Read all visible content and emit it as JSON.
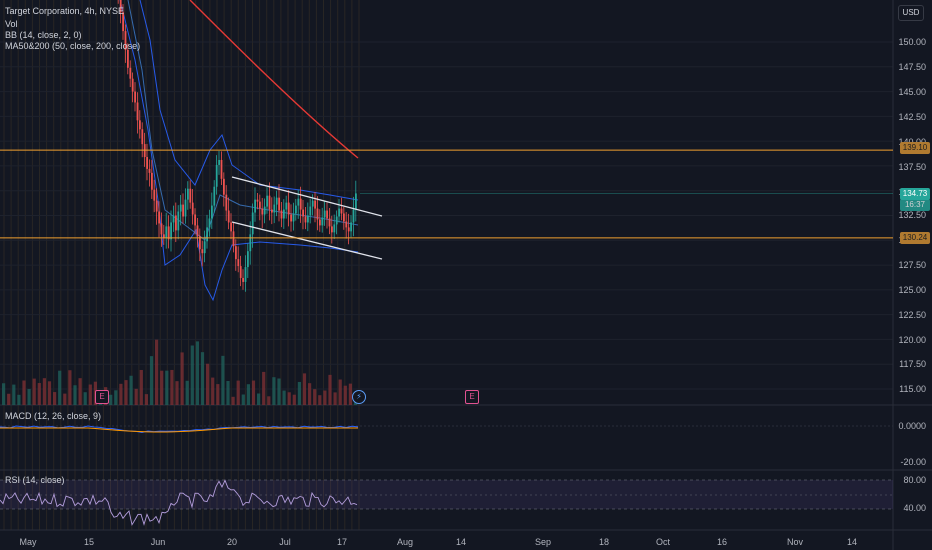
{
  "header": {
    "symbol_line": "Target Corporation, 4h, NYSE",
    "vol_label": "Vol",
    "bb_label": "BB (14, close, 2, 0)",
    "ma_label": "MA50&200 (50, close, 200, close)",
    "currency": "USD"
  },
  "macd": {
    "label": "MACD (12, 26, close, 9)",
    "ticks": [
      "0.0000",
      "-20.00"
    ]
  },
  "rsi": {
    "label": "RSI (14, close)",
    "ticks": [
      "80.00",
      "40.00"
    ]
  },
  "price_axis": {
    "ticks": [
      "150.00",
      "147.50",
      "145.00",
      "142.50",
      "140.00",
      "137.50",
      "135.00",
      "132.50",
      "130.00",
      "127.50",
      "125.00",
      "122.50",
      "120.00",
      "117.50",
      "115.00"
    ]
  },
  "badges": {
    "upper_line": "139.10",
    "last_price": "134.73",
    "last_price_sub": "16:37",
    "lower_line": "130.24"
  },
  "markers": {
    "dividend": "E",
    "earnings": "E"
  },
  "time_axis": {
    "labels": [
      "May",
      "15",
      "Jun",
      "20",
      "Jul",
      "17",
      "Aug",
      "14",
      "Sep",
      "18",
      "Oct",
      "16",
      "Nov",
      "14"
    ]
  },
  "colors": {
    "background": "#131722",
    "up": "#26a69a",
    "down": "#ef5350",
    "ma50": "#2962ff",
    "ma200": "#e53935",
    "bb": "#2962ff",
    "hline": "#f0a030",
    "channel": "#e0e3eb"
  },
  "chart_data": {
    "type": "candlestick",
    "title": "Target Corporation, 4h, NYSE",
    "currency": "USD",
    "ylim": [
      113,
      152
    ],
    "x": [
      "May",
      "15",
      "Jun",
      "20",
      "Jul",
      "17",
      "Aug",
      "14",
      "Sep",
      "18",
      "Oct",
      "16",
      "Nov",
      "14"
    ],
    "horizontal_levels": [
      139.1,
      130.24
    ],
    "last_price": 134.73,
    "closes": [
      156.5,
      155.2,
      153.0,
      151.1,
      149.2,
      147.4,
      146.3,
      145.0,
      143.9,
      142.1,
      141.2,
      139.7,
      138.4,
      137.2,
      136.8,
      135.1,
      134.0,
      132.9,
      131.7,
      130.6,
      130.2,
      131.4,
      130.1,
      131.8,
      132.5,
      131.0,
      132.9,
      133.6,
      132.4,
      134.1,
      135.2,
      133.8,
      132.6,
      131.5,
      130.4,
      129.1,
      128.7,
      129.9,
      131.3,
      132.2,
      133.5,
      135.4,
      137.6,
      138.1,
      136.2,
      134.6,
      133.0,
      131.8,
      130.9,
      129.4,
      128.1,
      127.4,
      126.2,
      125.8,
      127.3,
      128.9,
      130.6,
      132.8,
      134.1,
      133.9,
      133.2,
      132.6,
      133.4,
      134.5,
      133.1,
      132.8,
      133.6,
      134.3,
      133.0,
      132.2,
      133.1,
      133.8,
      132.6,
      131.9,
      132.7,
      133.5,
      134.2,
      133.1,
      132.4,
      131.8,
      132.5,
      133.4,
      134.0,
      133.2,
      132.1,
      131.5,
      132.3,
      133.0,
      132.2,
      131.4,
      130.8,
      131.6,
      132.4,
      133.2,
      132.7,
      131.9,
      131.3,
      130.9,
      131.8,
      133.1,
      134.73
    ],
    "ma200": [
      "start 156.0",
      "end 138.6"
    ],
    "channel": {
      "upper": [
        [
          "Jun-20",
          136.3
        ],
        [
          "Jul-21",
          132.4
        ]
      ],
      "lower": [
        [
          "Jun-20",
          132.0
        ],
        [
          "Jul-21",
          127.8
        ]
      ]
    },
    "rsi_range": [
      20,
      80
    ],
    "macd_zero": 0
  }
}
